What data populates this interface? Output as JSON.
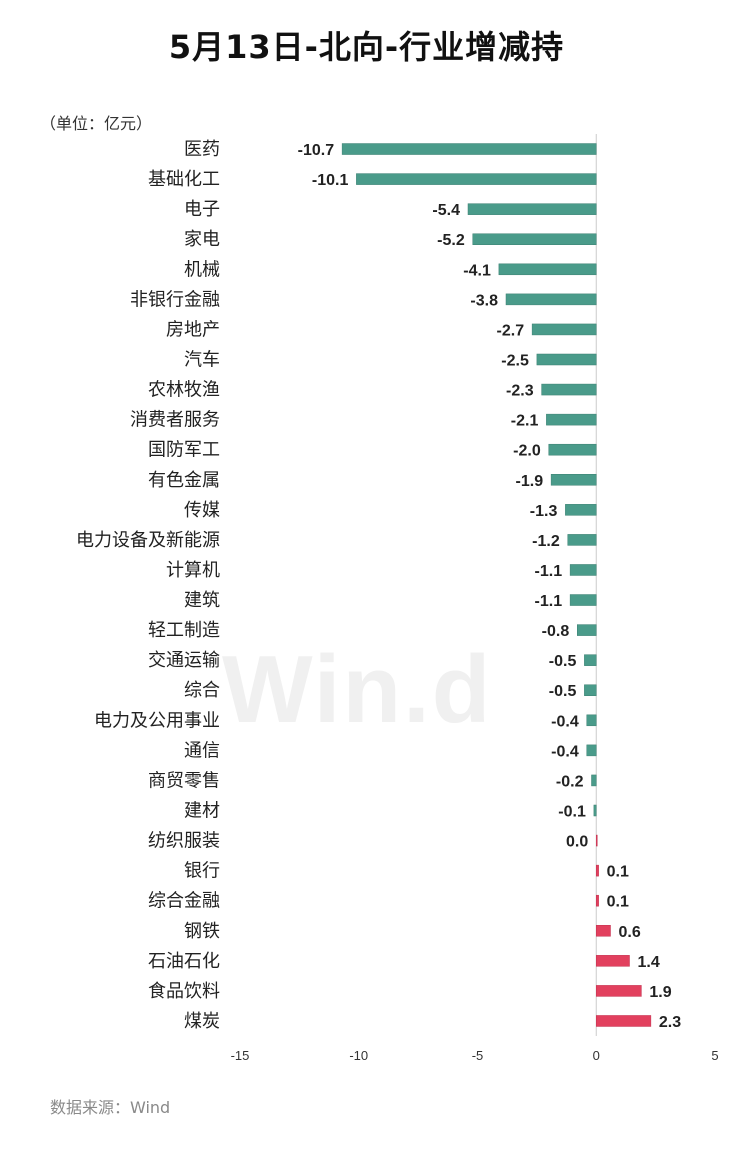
{
  "title": "5月13日-北向-行业增减持",
  "unit": "（单位：亿元）",
  "source": "数据来源：Wind",
  "watermark": "Win.d",
  "colors": {
    "negative": "#4a9b8a",
    "positive": "#e2405e",
    "axis": "#cccccc",
    "text": "#222222",
    "tick": "#333333"
  },
  "chart_data": {
    "type": "bar",
    "orientation": "horizontal",
    "categories": [
      "医药",
      "基础化工",
      "电子",
      "家电",
      "机械",
      "非银行金融",
      "房地产",
      "汽车",
      "农林牧渔",
      "消费者服务",
      "国防军工",
      "有色金属",
      "传媒",
      "电力设备及新能源",
      "计算机",
      "建筑",
      "轻工制造",
      "交通运输",
      "综合",
      "电力及公用事业",
      "通信",
      "商贸零售",
      "建材",
      "纺织服装",
      "银行",
      "综合金融",
      "钢铁",
      "石油石化",
      "食品饮料",
      "煤炭"
    ],
    "values": [
      -10.7,
      -10.1,
      -5.4,
      -5.2,
      -4.1,
      -3.8,
      -2.7,
      -2.5,
      -2.3,
      -2.1,
      -2.0,
      -1.9,
      -1.3,
      -1.2,
      -1.1,
      -1.1,
      -0.8,
      -0.5,
      -0.5,
      -0.4,
      -0.4,
      -0.2,
      -0.1,
      0.0,
      0.1,
      0.1,
      0.6,
      1.4,
      1.9,
      2.3
    ],
    "value_labels": [
      "-10.7",
      "-10.1",
      "-5.4",
      "-5.2",
      "-4.1",
      "-3.8",
      "-2.7",
      "-2.5",
      "-2.3",
      "-2.1",
      "-2.0",
      "-1.9",
      "-1.3",
      "-1.2",
      "-1.1",
      "-1.1",
      "-0.8",
      "-0.5",
      "-0.5",
      "-0.4",
      "-0.4",
      "-0.2",
      "-0.1",
      "0.0",
      "0.1",
      "0.1",
      "0.6",
      "1.4",
      "1.9",
      "2.3"
    ],
    "xlim": [
      -15,
      5
    ],
    "xticks": [
      -15,
      -10,
      -5,
      0,
      5
    ],
    "xtick_labels": [
      "-15",
      "-10",
      "-5",
      "0",
      "5"
    ],
    "grid": false,
    "legend": "none"
  }
}
